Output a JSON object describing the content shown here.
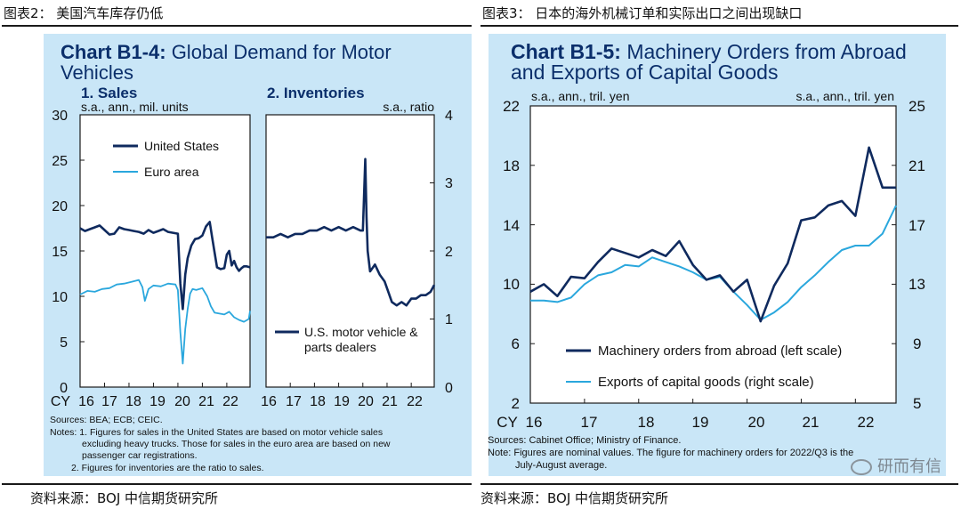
{
  "captions": {
    "left": "图表2： 美国汽车库存仍低",
    "right": "图表3： 日本的海外机械订单和实际出口之间出现缺口",
    "left_source": "资料来源：BOJ 中信期货研究所",
    "right_source": "资料来源：BOJ 中信期货研究所"
  },
  "watermark": "研而有信",
  "colors": {
    "panel_bg": "#c9e6f7",
    "series_dark": "#0f2a5e",
    "series_light": "#2aa7dd",
    "title": "#0b2f6b"
  },
  "left_chart": {
    "title_bold": "Chart B1-4:",
    "title_rest": " Global Demand for Motor",
    "title_line2": "Vehicles",
    "sub1": "1. Sales",
    "sub1_unit": "s.a., ann., mil. units",
    "sub2": "2. Inventories",
    "sub2_unit": "s.a., ratio",
    "yleft_ticks": [
      "30",
      "25",
      "20",
      "15",
      "10",
      "5",
      "0"
    ],
    "yright_ticks": [
      "4",
      "3",
      "2",
      "1",
      "0"
    ],
    "x_prefix": "CY",
    "x_ticks": [
      "16",
      "17",
      "18",
      "19",
      "20",
      "21",
      "22"
    ],
    "legend_us": "United States",
    "legend_eu": "Euro area",
    "legend_inv_1": "U.S. motor vehicle &",
    "legend_inv_2": "parts dealers",
    "notes": [
      "Sources: BEA; ECB; CEIC.",
      "Notes: 1. Figures for sales in the United States are based on motor vehicle sales",
      "excluding heavy trucks. Those for sales in the euro area are based on new",
      "passenger car registrations.",
      "2. Figures for inventories  are the ratio to sales."
    ]
  },
  "right_chart": {
    "title_bold": "Chart B1-5:",
    "title_rest": " Machinery Orders from Abroad",
    "title_line2": "and Exports of Capital Goods",
    "unit_left": "s.a., ann., tril. yen",
    "unit_right": "s.a., ann., tril. yen",
    "yleft_ticks": [
      "22",
      "18",
      "14",
      "10",
      "6",
      "2"
    ],
    "yright_ticks": [
      "25",
      "21",
      "17",
      "13",
      "9",
      "5"
    ],
    "x_prefix": "CY",
    "x_ticks": [
      "16",
      "17",
      "18",
      "19",
      "20",
      "21",
      "22"
    ],
    "legend_1": "Machinery orders from abroad (left scale)",
    "legend_2": "Exports of capital goods (right scale)",
    "notes": [
      "Sources: Cabinet Office; Ministry of Finance.",
      "Note: Figures are nominal values. The figure for machinery orders for 2022/Q3 is the",
      "July-August average."
    ]
  },
  "chart_data": [
    {
      "type": "line",
      "title": "Chart B1-4: Global Demand for Motor Vehicles — 1. Sales",
      "ylabel": "s.a., ann., mil. units",
      "ylim": [
        0,
        30
      ],
      "xlim": [
        2016,
        2022.95
      ],
      "series": [
        {
          "name": "United States",
          "x": [
            2016.0,
            2016.2,
            2016.4,
            2016.6,
            2016.8,
            2017.0,
            2017.2,
            2017.4,
            2017.6,
            2017.8,
            2018.0,
            2018.2,
            2018.4,
            2018.6,
            2018.8,
            2019.0,
            2019.2,
            2019.4,
            2019.6,
            2019.8,
            2020.0,
            2020.1,
            2020.2,
            2020.3,
            2020.4,
            2020.55,
            2020.7,
            2020.85,
            2021.0,
            2021.15,
            2021.3,
            2021.4,
            2021.5,
            2021.6,
            2021.75,
            2021.9,
            2022.0,
            2022.1,
            2022.2,
            2022.3,
            2022.4,
            2022.5,
            2022.6,
            2022.7,
            2022.8,
            2022.95
          ],
          "values": [
            17.5,
            17.2,
            17.4,
            17.6,
            17.8,
            17.3,
            16.8,
            16.9,
            17.6,
            17.4,
            17.3,
            17.2,
            17.1,
            16.9,
            17.3,
            17.0,
            17.2,
            17.4,
            17.1,
            17.0,
            16.9,
            11.4,
            8.6,
            12.4,
            14.2,
            15.6,
            16.3,
            16.4,
            16.7,
            17.7,
            18.2,
            16.5,
            14.8,
            13.2,
            13.0,
            13.1,
            14.6,
            15.0,
            13.4,
            13.9,
            13.2,
            12.8,
            13.1,
            13.3,
            13.3,
            13.2
          ]
        },
        {
          "name": "Euro area",
          "x": [
            2016.0,
            2016.3,
            2016.6,
            2016.9,
            2017.2,
            2017.5,
            2017.8,
            2018.1,
            2018.4,
            2018.55,
            2018.65,
            2018.8,
            2019.0,
            2019.3,
            2019.6,
            2019.9,
            2020.0,
            2020.1,
            2020.2,
            2020.3,
            2020.4,
            2020.5,
            2020.6,
            2020.75,
            2021.0,
            2021.2,
            2021.35,
            2021.5,
            2021.7,
            2021.9,
            2022.1,
            2022.3,
            2022.5,
            2022.7,
            2022.9,
            2022.95
          ],
          "values": [
            10.2,
            10.6,
            10.5,
            10.8,
            10.9,
            11.3,
            11.4,
            11.6,
            11.8,
            11.0,
            9.5,
            10.8,
            11.2,
            11.1,
            11.4,
            11.3,
            10.7,
            6.0,
            2.6,
            6.4,
            8.6,
            10.3,
            10.8,
            10.7,
            10.9,
            10.0,
            8.9,
            8.2,
            8.1,
            8.0,
            8.3,
            7.7,
            7.4,
            7.2,
            7.5,
            8.4
          ]
        }
      ]
    },
    {
      "type": "line",
      "title": "Chart B1-4: Global Demand for Motor Vehicles — 2. Inventories",
      "ylabel": "s.a., ratio",
      "ylim": [
        0,
        4
      ],
      "xlim": [
        2016,
        2022.95
      ],
      "series": [
        {
          "name": "U.S. motor vehicle & parts dealers",
          "x": [
            2016.0,
            2016.3,
            2016.6,
            2016.9,
            2017.2,
            2017.5,
            2017.8,
            2018.1,
            2018.4,
            2018.7,
            2019.0,
            2019.3,
            2019.6,
            2019.9,
            2020.0,
            2020.05,
            2020.1,
            2020.15,
            2020.2,
            2020.3,
            2020.4,
            2020.5,
            2020.7,
            2020.9,
            2021.0,
            2021.2,
            2021.4,
            2021.6,
            2021.8,
            2022.0,
            2022.2,
            2022.4,
            2022.6,
            2022.8,
            2022.95
          ],
          "values": [
            2.2,
            2.2,
            2.25,
            2.2,
            2.25,
            2.25,
            2.3,
            2.3,
            2.35,
            2.3,
            2.35,
            2.3,
            2.35,
            2.3,
            2.3,
            2.8,
            3.35,
            2.5,
            2.0,
            1.7,
            1.75,
            1.8,
            1.65,
            1.55,
            1.45,
            1.25,
            1.2,
            1.25,
            1.2,
            1.3,
            1.3,
            1.35,
            1.35,
            1.4,
            1.5
          ]
        }
      ]
    },
    {
      "type": "line",
      "title": "Chart B1-5: Machinery Orders from Abroad and Exports of Capital Goods",
      "ylabel": "s.a., ann., tril. yen",
      "ylim_left": [
        2,
        22
      ],
      "ylim_right": [
        5,
        25
      ],
      "xlim": [
        2016,
        2022.75
      ],
      "series": [
        {
          "name": "Machinery orders from abroad (left scale)",
          "axis": "left",
          "x": [
            2016.0,
            2016.25,
            2016.5,
            2016.75,
            2017.0,
            2017.25,
            2017.5,
            2017.75,
            2018.0,
            2018.25,
            2018.5,
            2018.75,
            2019.0,
            2019.25,
            2019.5,
            2019.75,
            2020.0,
            2020.25,
            2020.5,
            2020.75,
            2021.0,
            2021.25,
            2021.5,
            2021.75,
            2022.0,
            2022.25,
            2022.5,
            2022.75
          ],
          "values": [
            9.5,
            10.0,
            9.2,
            10.5,
            10.4,
            11.5,
            12.4,
            12.1,
            11.8,
            12.3,
            11.9,
            12.9,
            11.3,
            10.3,
            10.6,
            9.5,
            10.3,
            7.5,
            9.9,
            11.4,
            14.3,
            14.5,
            15.3,
            15.6,
            14.6,
            19.2,
            16.5,
            16.5
          ]
        },
        {
          "name": "Exports of capital goods (right scale)",
          "axis": "right",
          "x": [
            2016.0,
            2016.25,
            2016.5,
            2016.75,
            2017.0,
            2017.25,
            2017.5,
            2017.75,
            2018.0,
            2018.25,
            2018.5,
            2018.75,
            2019.0,
            2019.25,
            2019.5,
            2019.75,
            2020.0,
            2020.25,
            2020.5,
            2020.75,
            2021.0,
            2021.25,
            2021.5,
            2021.75,
            2022.0,
            2022.25,
            2022.5,
            2022.75
          ],
          "values": [
            11.9,
            11.9,
            11.8,
            12.1,
            13.0,
            13.6,
            13.8,
            14.3,
            14.2,
            14.8,
            14.5,
            14.2,
            13.8,
            13.3,
            13.5,
            12.5,
            11.6,
            10.6,
            11.1,
            11.8,
            12.8,
            13.6,
            14.5,
            15.3,
            15.6,
            15.6,
            16.4,
            18.3
          ]
        }
      ]
    }
  ]
}
